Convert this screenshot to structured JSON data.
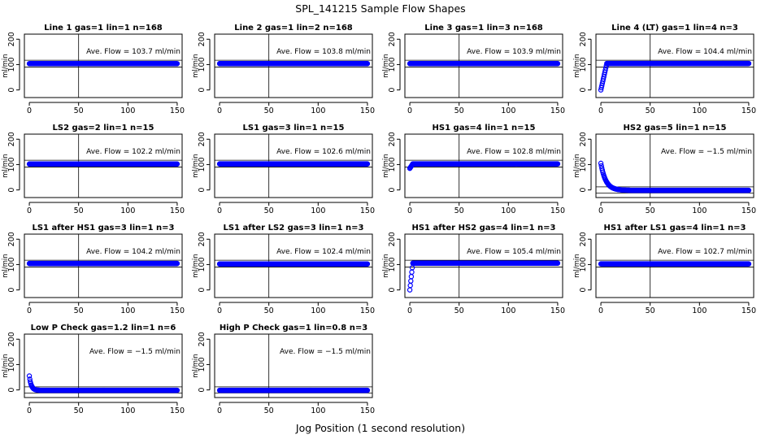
{
  "page": {
    "title": "SPL_141215  Sample Flow Shapes",
    "xlabel": "Jog Position (1 second resolution)"
  },
  "chart_data": [
    {
      "type": "scatter",
      "title": "Line 1 gas=1 lin=1 n=168",
      "ylabel": "ml/min",
      "annotation": "Ave. Flow = 103.7  ml/min",
      "xlim": [
        -5,
        155
      ],
      "ylim": [
        -30,
        220
      ],
      "xticks": [
        0,
        50,
        100,
        150
      ],
      "yticks": [
        0,
        100,
        200
      ],
      "reference_lines": {
        "vertical": 50,
        "horizontal": [
          90,
          117
        ]
      },
      "series": [
        {
          "color": "#0000ff",
          "shape": "plateau",
          "initial": 103.7,
          "plateau": 103.7,
          "settle": 0,
          "x_range": [
            0,
            150
          ]
        }
      ]
    },
    {
      "type": "scatter",
      "title": "Line 2 gas=1 lin=2 n=168",
      "ylabel": "ml/min",
      "annotation": "Ave. Flow = 103.8  ml/min",
      "xlim": [
        -5,
        155
      ],
      "ylim": [
        -30,
        220
      ],
      "xticks": [
        0,
        50,
        100,
        150
      ],
      "yticks": [
        0,
        100,
        200
      ],
      "reference_lines": {
        "vertical": 50,
        "horizontal": [
          90,
          117
        ]
      },
      "series": [
        {
          "color": "#0000ff",
          "shape": "plateau",
          "initial": 103.8,
          "plateau": 103.8,
          "settle": 0,
          "x_range": [
            0,
            150
          ]
        }
      ]
    },
    {
      "type": "scatter",
      "title": "Line 3 gas=1 lin=3 n=168",
      "ylabel": "ml/min",
      "annotation": "Ave. Flow = 103.9  ml/min",
      "xlim": [
        -5,
        155
      ],
      "ylim": [
        -30,
        220
      ],
      "xticks": [
        0,
        50,
        100,
        150
      ],
      "yticks": [
        0,
        100,
        200
      ],
      "reference_lines": {
        "vertical": 50,
        "horizontal": [
          90,
          117
        ]
      },
      "series": [
        {
          "color": "#0000ff",
          "shape": "plateau",
          "initial": 98,
          "plateau": 103.9,
          "settle": 3,
          "x_range": [
            0,
            150
          ]
        }
      ]
    },
    {
      "type": "scatter",
      "title": "Line 4 (LT) gas=1 lin=4 n=3",
      "ylabel": "ml/min",
      "annotation": "Ave. Flow = 104.4  ml/min",
      "xlim": [
        -5,
        155
      ],
      "ylim": [
        -30,
        220
      ],
      "xticks": [
        0,
        50,
        100,
        150
      ],
      "yticks": [
        0,
        100,
        200
      ],
      "reference_lines": {
        "vertical": 50,
        "horizontal": [
          90,
          117
        ]
      },
      "series": [
        {
          "color": "#0000ff",
          "shape": "rise",
          "initial": 0,
          "plateau": 104.4,
          "settle": 6,
          "x_range": [
            0,
            150
          ]
        }
      ]
    },
    {
      "type": "scatter",
      "title": "LS2 gas=2 lin=1 n=15",
      "ylabel": "ml/min",
      "annotation": "Ave. Flow = 102.2  ml/min",
      "xlim": [
        -5,
        155
      ],
      "ylim": [
        -30,
        220
      ],
      "xticks": [
        0,
        50,
        100,
        150
      ],
      "yticks": [
        0,
        100,
        200
      ],
      "reference_lines": {
        "vertical": 50,
        "horizontal": [
          90,
          117
        ]
      },
      "series": [
        {
          "color": "#0000ff",
          "shape": "plateau",
          "initial": 102.2,
          "plateau": 102.2,
          "settle": 0,
          "x_range": [
            0,
            150
          ]
        }
      ]
    },
    {
      "type": "scatter",
      "title": "LS1 gas=3 lin=1 n=15",
      "ylabel": "ml/min",
      "annotation": "Ave. Flow = 102.6  ml/min",
      "xlim": [
        -5,
        155
      ],
      "ylim": [
        -30,
        220
      ],
      "xticks": [
        0,
        50,
        100,
        150
      ],
      "yticks": [
        0,
        100,
        200
      ],
      "reference_lines": {
        "vertical": 50,
        "horizontal": [
          90,
          117
        ]
      },
      "series": [
        {
          "color": "#0000ff",
          "shape": "plateau",
          "initial": 102.6,
          "plateau": 102.6,
          "settle": 0,
          "x_range": [
            0,
            150
          ]
        }
      ]
    },
    {
      "type": "scatter",
      "title": "HS1 gas=4 lin=1 n=15",
      "ylabel": "ml/min",
      "annotation": "Ave. Flow = 102.8  ml/min",
      "xlim": [
        -5,
        155
      ],
      "ylim": [
        -30,
        220
      ],
      "xticks": [
        0,
        50,
        100,
        150
      ],
      "yticks": [
        0,
        100,
        200
      ],
      "reference_lines": {
        "vertical": 50,
        "horizontal": [
          90,
          117
        ]
      },
      "series": [
        {
          "color": "#0000ff",
          "shape": "rise",
          "initial": 85,
          "plateau": 102.8,
          "settle": 3,
          "x_range": [
            0,
            150
          ]
        }
      ]
    },
    {
      "type": "scatter",
      "title": "HS2 gas=5 lin=1 n=15",
      "ylabel": "ml/min",
      "annotation": "Ave. Flow = −1.5  ml/min",
      "xlim": [
        -5,
        155
      ],
      "ylim": [
        -30,
        220
      ],
      "xticks": [
        0,
        50,
        100,
        150
      ],
      "yticks": [
        0,
        100,
        200
      ],
      "reference_lines": {
        "vertical": 50,
        "horizontal": [
          -12,
          12
        ]
      },
      "series": [
        {
          "color": "#0000ff",
          "shape": "decay",
          "initial": 105,
          "plateau": -1.5,
          "settle": 5,
          "x_range": [
            0,
            150
          ]
        }
      ]
    },
    {
      "type": "scatter",
      "title": "LS1 after HS1 gas=3 lin=1 n=3",
      "ylabel": "ml/min",
      "annotation": "Ave. Flow = 104.2  ml/min",
      "xlim": [
        -5,
        155
      ],
      "ylim": [
        -30,
        220
      ],
      "xticks": [
        0,
        50,
        100,
        150
      ],
      "yticks": [
        0,
        100,
        200
      ],
      "reference_lines": {
        "vertical": 50,
        "horizontal": [
          90,
          117
        ]
      },
      "series": [
        {
          "color": "#0000ff",
          "shape": "plateau",
          "initial": 104.2,
          "plateau": 104.2,
          "settle": 0,
          "x_range": [
            0,
            150
          ]
        }
      ]
    },
    {
      "type": "scatter",
      "title": "LS1 after LS2 gas=3 lin=1 n=3",
      "ylabel": "ml/min",
      "annotation": "Ave. Flow = 102.4  ml/min",
      "xlim": [
        -5,
        155
      ],
      "ylim": [
        -30,
        220
      ],
      "xticks": [
        0,
        50,
        100,
        150
      ],
      "yticks": [
        0,
        100,
        200
      ],
      "reference_lines": {
        "vertical": 50,
        "horizontal": [
          90,
          117
        ]
      },
      "series": [
        {
          "color": "#0000ff",
          "shape": "plateau",
          "initial": 102.4,
          "plateau": 102.4,
          "settle": 0,
          "x_range": [
            0,
            150
          ]
        }
      ]
    },
    {
      "type": "scatter",
      "title": "HS1 after HS2 gas=4 lin=1 n=3",
      "ylabel": "ml/min",
      "annotation": "Ave. Flow = 105.4  ml/min",
      "xlim": [
        -5,
        155
      ],
      "ylim": [
        -30,
        220
      ],
      "xticks": [
        0,
        50,
        100,
        150
      ],
      "yticks": [
        0,
        100,
        200
      ],
      "reference_lines": {
        "vertical": 50,
        "horizontal": [
          90,
          117
        ]
      },
      "series": [
        {
          "color": "#0000ff",
          "shape": "rise",
          "initial": 0,
          "plateau": 105.4,
          "settle": 3,
          "x_range": [
            0,
            150
          ]
        }
      ]
    },
    {
      "type": "scatter",
      "title": "HS1 after LS1 gas=4 lin=1 n=3",
      "ylabel": "ml/min",
      "annotation": "Ave. Flow = 102.7  ml/min",
      "xlim": [
        -5,
        155
      ],
      "ylim": [
        -30,
        220
      ],
      "xticks": [
        0,
        50,
        100,
        150
      ],
      "yticks": [
        0,
        100,
        200
      ],
      "reference_lines": {
        "vertical": 50,
        "horizontal": [
          90,
          117
        ]
      },
      "series": [
        {
          "color": "#0000ff",
          "shape": "plateau",
          "initial": 102.7,
          "plateau": 102.7,
          "settle": 0,
          "x_range": [
            0,
            150
          ]
        }
      ]
    },
    {
      "type": "scatter",
      "title": "Low P Check gas=1.2 lin=1 n=6",
      "ylabel": "ml/min",
      "annotation": "Ave. Flow = −1.5  ml/min",
      "xlim": [
        -5,
        155
      ],
      "ylim": [
        -30,
        220
      ],
      "xticks": [
        0,
        50,
        100,
        150
      ],
      "yticks": [
        0,
        100,
        200
      ],
      "reference_lines": {
        "vertical": 50,
        "horizontal": [
          -12,
          12
        ]
      },
      "series": [
        {
          "color": "#0000ff",
          "shape": "decay",
          "initial": 55,
          "plateau": -1.5,
          "settle": 2,
          "x_range": [
            0,
            150
          ]
        }
      ]
    },
    {
      "type": "scatter",
      "title": "High P Check gas=1 lin=0.8 n=3",
      "ylabel": "ml/min",
      "annotation": "Ave. Flow = −1.5  ml/min",
      "xlim": [
        -5,
        155
      ],
      "ylim": [
        -30,
        220
      ],
      "xticks": [
        0,
        50,
        100,
        150
      ],
      "yticks": [
        0,
        100,
        200
      ],
      "reference_lines": {
        "vertical": 50,
        "horizontal": [
          -12,
          12
        ]
      },
      "series": [
        {
          "color": "#0000ff",
          "shape": "plateau",
          "initial": -1.5,
          "plateau": -1.5,
          "settle": 0,
          "x_range": [
            0,
            150
          ]
        }
      ]
    }
  ]
}
